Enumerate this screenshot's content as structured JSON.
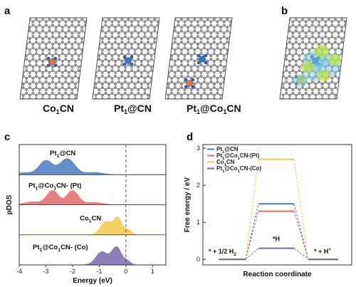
{
  "panels": {
    "a": {
      "label": "a",
      "structures": [
        {
          "label": "Co1CN",
          "main": "Co",
          "sub": "1",
          "rest": "CN"
        },
        {
          "label": "Pt1@CN",
          "main": "Pt",
          "sub": "1",
          "rest": "@CN"
        },
        {
          "label": "Pt1@Co1CN",
          "main": "Pt",
          "sub": "1",
          "rest": "@Co",
          "sub2": "1",
          "rest2": "CN"
        }
      ]
    },
    "b": {
      "label": "b"
    },
    "c": {
      "label": "c"
    },
    "d": {
      "label": "d"
    }
  },
  "colors": {
    "carbon": "#9a9a9a",
    "nitrogen": "#3a5fa8",
    "cobalt": "#e07a3a",
    "platinum": "#2a7fc4",
    "pt_cn": "#4a7cc0",
    "pt_co1cn_pt": "#e06a6a",
    "co1cn": "#f2c84a",
    "pt_co1cn_co": "#7a6ab0",
    "density_green": "#b8e04a",
    "density_cyan": "#7ac8e8"
  },
  "chart_data": [
    {
      "type": "area",
      "panel": "c",
      "xlabel": "Energy (eV)",
      "ylabel": "pDOS",
      "xlim": [
        -4,
        1.5
      ],
      "xticks": [
        "-4",
        "-3",
        "-2",
        "-1",
        "0",
        "1"
      ],
      "fermi_level": 0,
      "series": [
        {
          "label": "Pt1@CN",
          "main": "Pt",
          "sub": "1",
          "rest": "@CN",
          "color": "#4a7cc0",
          "peaks": [
            [
              -3.0,
              0.75,
              0.25
            ],
            [
              -2.2,
              0.85,
              0.28
            ],
            [
              -1.2,
              0.12,
              0.3
            ],
            [
              -3.8,
              0.1,
              0.3
            ]
          ]
        },
        {
          "label": "Pt1@Co1CN- (Pt)",
          "main": "Pt",
          "sub": "1",
          "rest": "@Co",
          "sub2": "1",
          "rest2": "CN- (Pt)",
          "color": "#e06a6a",
          "peaks": [
            [
              -2.75,
              0.75,
              0.22
            ],
            [
              -2.0,
              0.75,
              0.22
            ],
            [
              -1.2,
              0.12,
              0.3
            ],
            [
              -3.5,
              0.15,
              0.3
            ]
          ]
        },
        {
          "label": "Co1CN",
          "main": "Co",
          "sub": "1",
          "rest": "CN",
          "color": "#f2c84a",
          "peaks": [
            [
              -0.75,
              0.7,
              0.2
            ],
            [
              -0.3,
              0.9,
              0.16
            ],
            [
              0.1,
              0.25,
              0.12
            ]
          ]
        },
        {
          "label": "Pt1@Co1CN- (Co)",
          "main": "Pt",
          "sub": "1",
          "rest": "@Co",
          "sub2": "1",
          "rest2": "CN- (Co)",
          "color": "#7a6ab0",
          "peaks": [
            [
              -0.9,
              0.7,
              0.22
            ],
            [
              -0.35,
              0.95,
              0.18
            ],
            [
              0.05,
              0.2,
              0.12
            ]
          ]
        }
      ]
    },
    {
      "type": "line",
      "panel": "d",
      "xlabel": "Reaction coordinate",
      "ylabel": "Free energy / eV",
      "ylim": [
        -0.15,
        3.1
      ],
      "yticks": [
        0,
        1,
        2,
        3
      ],
      "states": [
        "* + 1/2 H2",
        "*H",
        "* + H+"
      ],
      "state_labels": {
        "initial": "* + 1/2 H",
        "initial_sub": "2",
        "intermediate": "*H",
        "final": "* + H",
        "final_sup": "+"
      },
      "series": [
        {
          "label": "Pt1@CN",
          "main": "Pt",
          "sub": "1",
          "rest": "@CN",
          "color": "#4a7cc0",
          "values": [
            0,
            1.5,
            0
          ]
        },
        {
          "label": "Pt1@Co1CN-(Pt)",
          "main": "Pt",
          "sub": "1",
          "rest": "@Co",
          "sub2": "1",
          "rest2": "CN-(Pt)",
          "color": "#e06a6a",
          "values": [
            0,
            1.3,
            0
          ]
        },
        {
          "label": "Co1CN",
          "main": "Co",
          "sub": "1",
          "rest": "CN",
          "color": "#f2c84a",
          "values": [
            0,
            2.7,
            0
          ]
        },
        {
          "label": "Pt1@Co1CN-(Co)",
          "main": "Pt",
          "sub": "1",
          "rest": "@Co",
          "sub2": "1",
          "rest2": "CN-(Co)",
          "color": "#7a6ab0",
          "values": [
            0,
            0.3,
            0
          ]
        }
      ]
    }
  ]
}
